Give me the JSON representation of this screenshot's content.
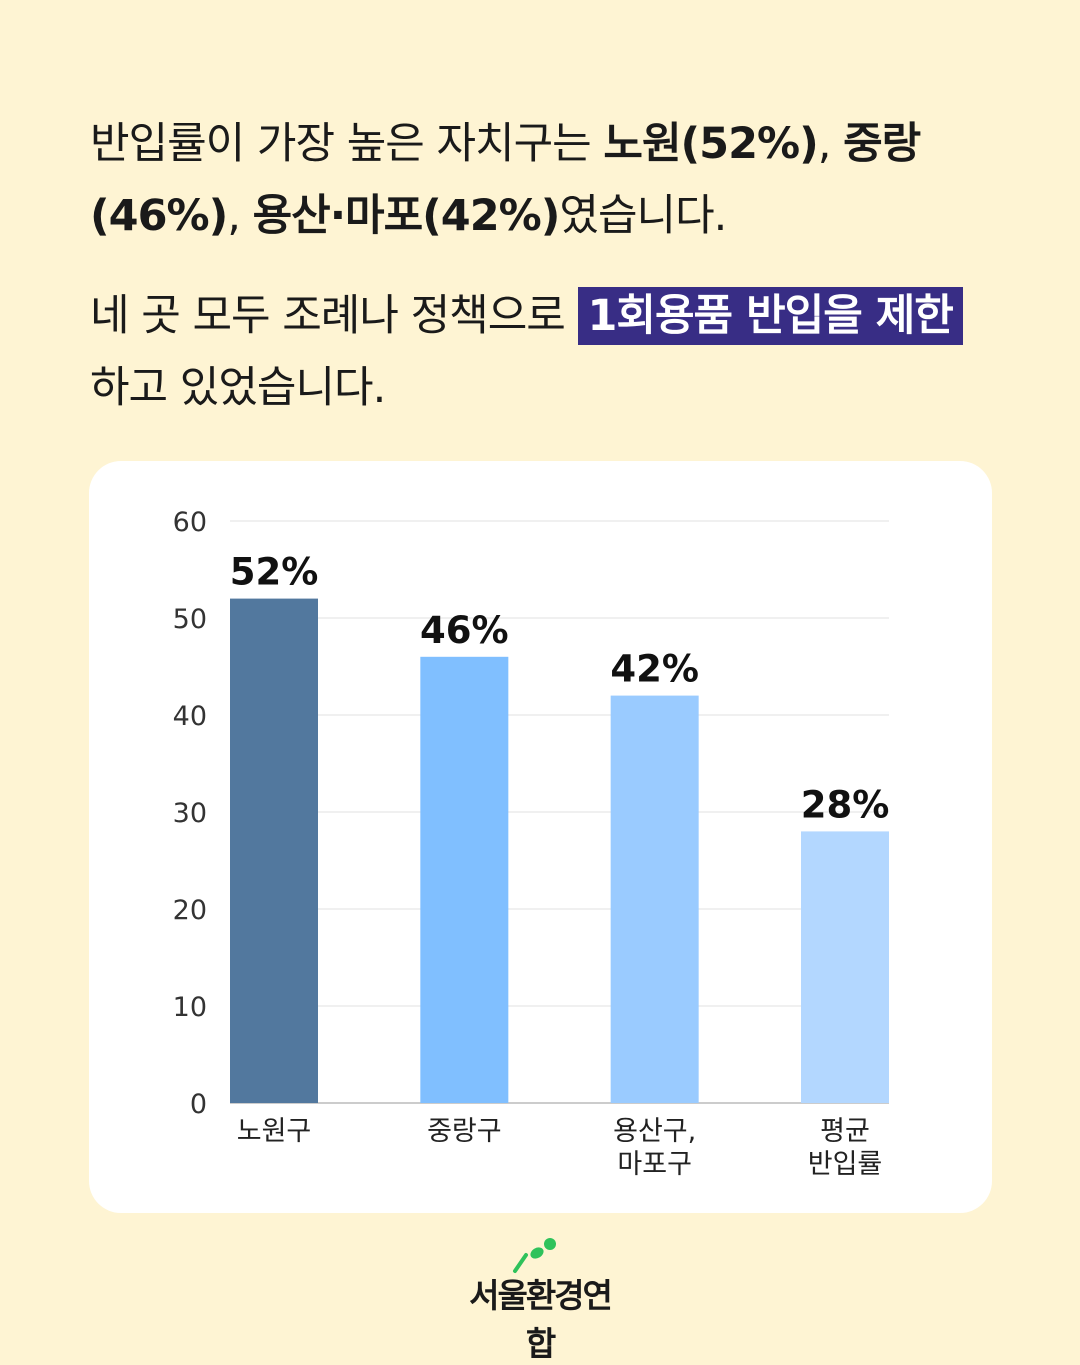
{
  "paragraph1": {
    "t1": "반입률이 가장 높은 자치구는 ",
    "b1": "노원(52%)",
    "t2": ", ",
    "b2": "중랑 (46%)",
    "t3": ", ",
    "b3": "용산·마포(42%)",
    "t4": "였습니다."
  },
  "paragraph2": {
    "t1": "네 곳 모두 조례나 정책으로 ",
    "highlight": "1회용품 반입을 제한",
    "t2": " 하고 있었습니다."
  },
  "colors": {
    "background": "#FEF4D3",
    "highlight": "#382D85",
    "logo_accent": "#2FC25B"
  },
  "logo": {
    "text": "서울환경연합"
  },
  "chart_data": {
    "type": "bar",
    "categories": [
      [
        "노원구"
      ],
      [
        "중랑구"
      ],
      [
        "용산구,",
        "마포구"
      ],
      [
        "평균",
        "반입률"
      ]
    ],
    "values": [
      52,
      46,
      42,
      28
    ],
    "data_labels": [
      "52%",
      "46%",
      "42%",
      "28%"
    ],
    "bar_colors": [
      "#52789E",
      "#80BFFF",
      "#9ACBFF",
      "#B3D7FF"
    ],
    "ylim": [
      0,
      60
    ],
    "yticks": [
      0,
      10,
      20,
      30,
      40,
      50,
      60
    ],
    "grid": true,
    "legend": "none",
    "title": "",
    "xlabel": "",
    "ylabel": ""
  }
}
